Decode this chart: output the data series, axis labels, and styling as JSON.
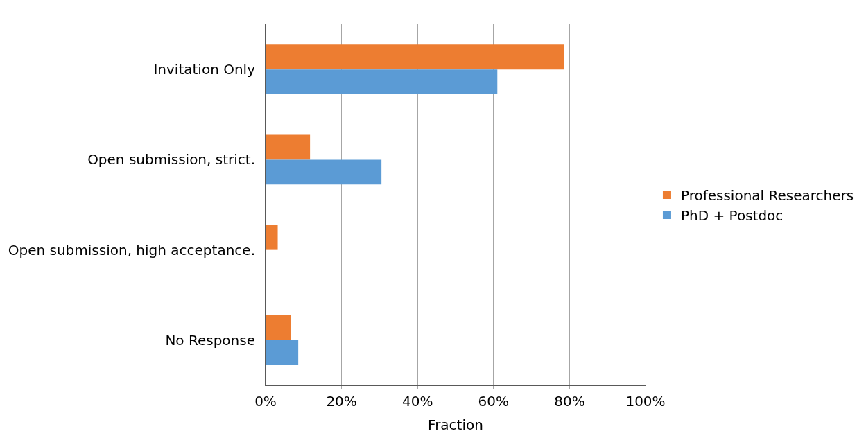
{
  "chart_data": {
    "type": "bar",
    "orientation": "horizontal",
    "xlabel": "Fraction",
    "categories": [
      "Invitation Only",
      "Open submission, strict.",
      "Open submission, high acceptance.",
      "No Response"
    ],
    "series": [
      {
        "name": "Professional Researchers",
        "color": "#ed7d31",
        "values": [
          78.6,
          11.7,
          3.2,
          6.6
        ]
      },
      {
        "name": "PhD + Postdoc",
        "color": "#5b9bd5",
        "values": [
          61.0,
          30.5,
          0,
          8.6
        ]
      }
    ],
    "xlim": [
      0,
      100
    ],
    "xticks": [
      {
        "value": 0,
        "label": "0%"
      },
      {
        "value": 20,
        "label": "20%"
      },
      {
        "value": 40,
        "label": "40%"
      },
      {
        "value": 60,
        "label": "60%"
      },
      {
        "value": 80,
        "label": "80%"
      },
      {
        "value": 100,
        "label": "100%"
      }
    ],
    "grid": "x",
    "legend": "right"
  }
}
